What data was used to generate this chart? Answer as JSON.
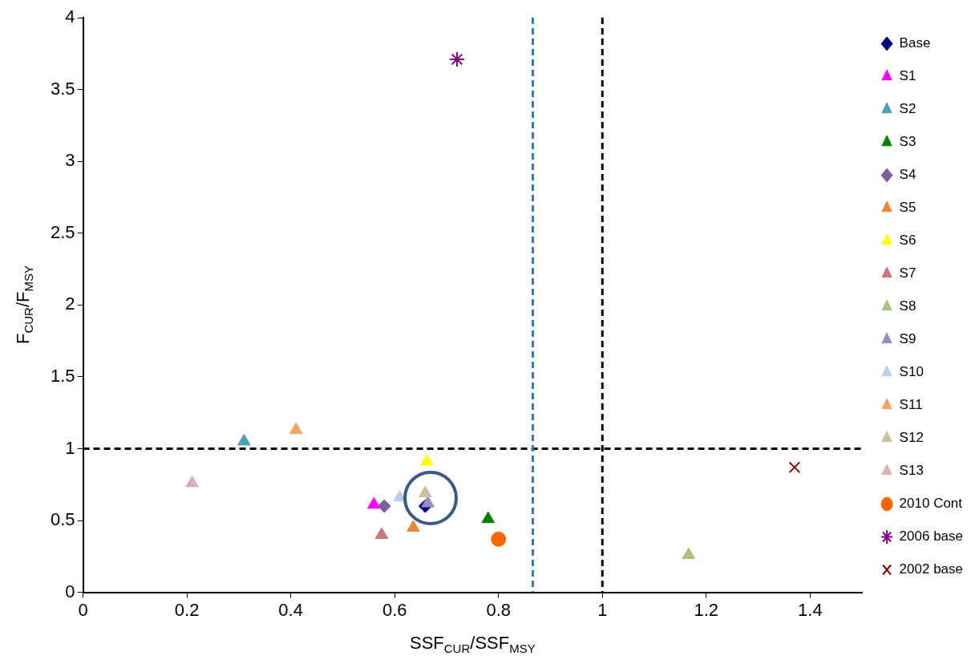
{
  "chart_data": {
    "type": "scatter",
    "xlabel": "SSF$_{CUR}$/SSF$_{MSY}$",
    "ylabel": "F$_{CUR}$/F$_{MSY}$",
    "xlim": [
      0,
      1.5
    ],
    "xticks": [
      0,
      0.2,
      0.4,
      0.6,
      0.8,
      1,
      1.2,
      1.4
    ],
    "ylim": [
      0,
      4
    ],
    "yticks": [
      0,
      0.5,
      1,
      1.5,
      2,
      2.5,
      3,
      3.5,
      4
    ],
    "grid": false,
    "legend": "right",
    "ref_lines": [
      {
        "axis": "y",
        "value": 1,
        "color": "#000000",
        "line_style": "dashed"
      },
      {
        "axis": "x",
        "value": 1,
        "color": "#000000",
        "line_style": "dashed"
      },
      {
        "axis": "x",
        "value": 0.866,
        "color": "#1f7fd0",
        "line_style": "dashed"
      }
    ],
    "series": [
      {
        "name": "Base",
        "color": "#000080",
        "marker": "diamond",
        "x": [
          0.659
        ],
        "values": [
          0.6
        ]
      },
      {
        "name": "S1",
        "color": "#ff00ff",
        "marker": "triangle",
        "x": [
          0.56
        ],
        "values": [
          0.61
        ]
      },
      {
        "name": "S2",
        "color": "#4aa0b5",
        "marker": "triangle",
        "x": [
          0.31
        ],
        "values": [
          1.05
        ]
      },
      {
        "name": "S3",
        "color": "#008000",
        "marker": "triangle",
        "x": [
          0.78
        ],
        "values": [
          0.51
        ]
      },
      {
        "name": "S4",
        "color": "#7f5f9f",
        "marker": "diamond",
        "x": [
          0.58
        ],
        "values": [
          0.6
        ]
      },
      {
        "name": "S5",
        "color": "#e8873a",
        "marker": "triangle",
        "x": [
          0.636
        ],
        "values": [
          0.45
        ]
      },
      {
        "name": "S6",
        "color": "#ffff00",
        "marker": "triangle",
        "x": [
          0.662
        ],
        "values": [
          0.91
        ]
      },
      {
        "name": "S7",
        "color": "#c97878",
        "marker": "triangle",
        "x": [
          0.575
        ],
        "values": [
          0.4
        ]
      },
      {
        "name": "S8",
        "color": "#a8c47c",
        "marker": "triangle",
        "x": [
          1.166
        ],
        "values": [
          0.26
        ]
      },
      {
        "name": "S9",
        "color": "#9c8cc0",
        "marker": "triangle",
        "x": [
          0.664
        ],
        "values": [
          0.62
        ]
      },
      {
        "name": "S10",
        "color": "#b8d0e8",
        "marker": "triangle",
        "x": [
          0.61
        ],
        "values": [
          0.66
        ]
      },
      {
        "name": "S11",
        "color": "#f4a460",
        "marker": "triangle",
        "x": [
          0.41
        ],
        "values": [
          1.13
        ]
      },
      {
        "name": "S12",
        "color": "#c8c0a0",
        "marker": "triangle",
        "x": [
          0.659
        ],
        "values": [
          0.69
        ]
      },
      {
        "name": "S13",
        "color": "#dcb0b0",
        "marker": "triangle",
        "x": [
          0.21
        ],
        "values": [
          0.76
        ]
      },
      {
        "name": "2010 Cont",
        "color": "#ff6600",
        "marker": "circle",
        "x": [
          0.8
        ],
        "values": [
          0.37
        ]
      },
      {
        "name": "2006 base",
        "color": "#800080",
        "marker": "cross",
        "x": [
          0.72
        ],
        "values": [
          3.71
        ]
      },
      {
        "name": "2002 base",
        "color": "#8b0000",
        "marker": "cross",
        "x": [
          1.37
        ],
        "values": [
          0.87
        ]
      }
    ]
  }
}
